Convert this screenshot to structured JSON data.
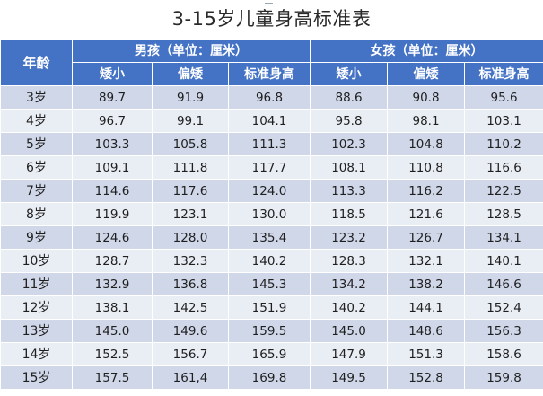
{
  "title": "3-15岁儿童身高标准表",
  "table": {
    "age_header": "年龄",
    "boys_header": "男孩（单位：厘米）",
    "girls_header": "女孩（单位：厘米）",
    "sub_headers": [
      "矮小",
      "偏矮",
      "标准身高",
      "矮小",
      "偏矮",
      "标准身高"
    ],
    "rows": [
      {
        "age": "3岁",
        "boys": [
          "89.7",
          "91.9",
          "96.8"
        ],
        "girls": [
          "88.6",
          "90.8",
          "95.6"
        ]
      },
      {
        "age": "4岁",
        "boys": [
          "96.7",
          "99.1",
          "104.1"
        ],
        "girls": [
          "95.8",
          "98.1",
          "103.1"
        ]
      },
      {
        "age": "5岁",
        "boys": [
          "103.3",
          "105.8",
          "111.3"
        ],
        "girls": [
          "102.3",
          "104.8",
          "110.2"
        ]
      },
      {
        "age": "6岁",
        "boys": [
          "109.1",
          "111.8",
          "117.7"
        ],
        "girls": [
          "108.1",
          "110.8",
          "116.6"
        ]
      },
      {
        "age": "7岁",
        "boys": [
          "114.6",
          "117.6",
          "124.0"
        ],
        "girls": [
          "113.3",
          "116.2",
          "122.5"
        ]
      },
      {
        "age": "8岁",
        "boys": [
          "119.9",
          "123.1",
          "130.0"
        ],
        "girls": [
          "118.5",
          "121.6",
          "128.5"
        ]
      },
      {
        "age": "9岁",
        "boys": [
          "124.6",
          "128.0",
          "135.4"
        ],
        "girls": [
          "123.2",
          "126.7",
          "134.1"
        ]
      },
      {
        "age": "10岁",
        "boys": [
          "128.7",
          "132.3",
          "140.2"
        ],
        "girls": [
          "128.3",
          "132.1",
          "140.1"
        ]
      },
      {
        "age": "11岁",
        "boys": [
          "132.9",
          "136.8",
          "145.3"
        ],
        "girls": [
          "134.2",
          "138.2",
          "146.6"
        ]
      },
      {
        "age": "12岁",
        "boys": [
          "138.1",
          "142.5",
          "151.9"
        ],
        "girls": [
          "140.2",
          "144.1",
          "152.4"
        ]
      },
      {
        "age": "13岁",
        "boys": [
          "145.0",
          "149.6",
          "159.5"
        ],
        "girls": [
          "145.0",
          "148.6",
          "156.3"
        ]
      },
      {
        "age": "14岁",
        "boys": [
          "152.5",
          "156.7",
          "165.9"
        ],
        "girls": [
          "147.9",
          "151.3",
          "158.6"
        ]
      },
      {
        "age": "15岁",
        "boys": [
          "157.5",
          "161,4",
          "169.8"
        ],
        "girls": [
          "149.5",
          "152.8",
          "159.8"
        ]
      }
    ]
  }
}
